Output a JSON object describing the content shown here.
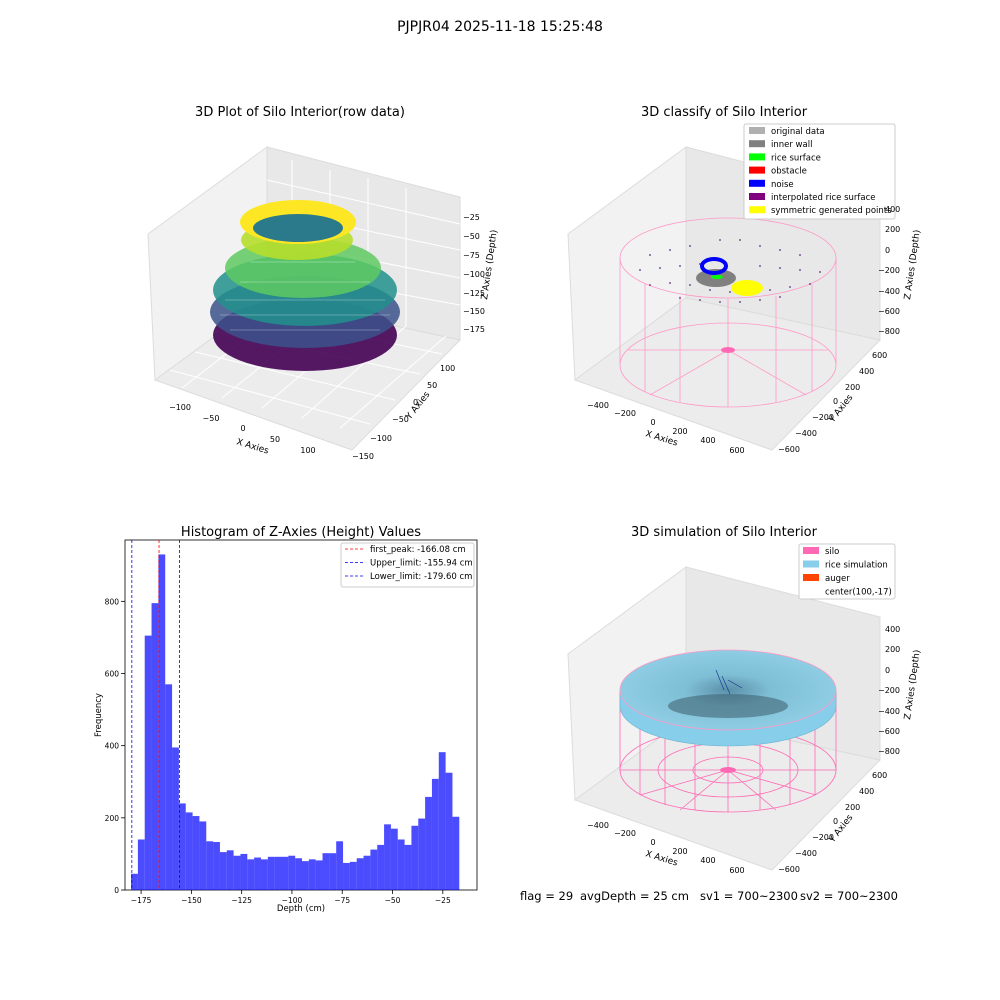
{
  "suptitle": "PJPJR04 2025-11-18 15:25:48",
  "panels": {
    "raw": {
      "title": "3D Plot of Silo Interior(row data)",
      "xlabel": "X Axies",
      "ylabel": "Y Axies",
      "zlabel": "Z Axies (Depth)",
      "xticks": [
        "−100",
        "−50",
        "0",
        "50",
        "100"
      ],
      "yticks": [
        "100",
        "50",
        "0",
        "−50",
        "−100",
        "−150"
      ],
      "zticks": [
        "−25",
        "−50",
        "−75",
        "−100",
        "−125",
        "−150",
        "−175"
      ]
    },
    "classify": {
      "title": "3D classify of Silo Interior",
      "xlabel": "X Axies",
      "ylabel": "Y Axies",
      "zlabel": "Z Axies (Depth)",
      "xticks": [
        "−400",
        "−200",
        "0",
        "200",
        "400",
        "600"
      ],
      "yticks": [
        "600",
        "400",
        "200",
        "0",
        "−200",
        "−400",
        "−600"
      ],
      "zticks": [
        "400",
        "200",
        "0",
        "−200",
        "−400",
        "−600",
        "−800"
      ],
      "legend": [
        {
          "label": "original data",
          "color": "#b0b0b0"
        },
        {
          "label": "inner wall",
          "color": "#808080"
        },
        {
          "label": "rice surface",
          "color": "#00ff00"
        },
        {
          "label": "obstacle",
          "color": "#ff0000"
        },
        {
          "label": "noise",
          "color": "#0000ff"
        },
        {
          "label": "interpolated rice surface",
          "color": "#800080"
        },
        {
          "label": "symmetric generated points",
          "color": "#ffff00"
        }
      ]
    },
    "simulation": {
      "title": "3D simulation of Silo Interior",
      "xlabel": "X Axies",
      "ylabel": "Y Axies",
      "zlabel": "Z Axies (Depth)",
      "xticks": [
        "−400",
        "−200",
        "0",
        "200",
        "400",
        "600"
      ],
      "yticks": [
        "600",
        "400",
        "200",
        "0",
        "−200",
        "−400",
        "−600"
      ],
      "zticks": [
        "400",
        "200",
        "0",
        "−200",
        "−400",
        "−600",
        "−800"
      ],
      "legend": [
        {
          "label": "silo",
          "color": "#ff69b4"
        },
        {
          "label": "rice simulation",
          "color": "#87ceeb"
        },
        {
          "label": "auger",
          "color": "#ff4500"
        },
        {
          "label": "center(100,-17)",
          "color": ""
        }
      ]
    }
  },
  "status": {
    "flag": "flag = 29",
    "avg_depth": "avgDepth = 25 cm",
    "sv1": "sv1 = 700~2300",
    "sv2": "sv2 = 700~2300"
  },
  "chart_data": {
    "type": "bar",
    "title": "Histogram of Z-Axies (Height) Values",
    "xlabel": "Depth (cm)",
    "ylabel": "Frequency",
    "xlim": [
      -183,
      -8
    ],
    "ylim": [
      0,
      970
    ],
    "xticks": [
      -175,
      -150,
      -125,
      -100,
      -75,
      -50,
      -25
    ],
    "yticks": [
      0,
      200,
      400,
      600,
      800
    ],
    "bar_color": "#0000ff",
    "bins": {
      "start": -180,
      "width": 3.4,
      "values": [
        45,
        140,
        705,
        795,
        930,
        570,
        395,
        240,
        215,
        205,
        190,
        135,
        133,
        105,
        110,
        95,
        100,
        85,
        90,
        85,
        92,
        92,
        92,
        95,
        88,
        80,
        85,
        82,
        102,
        102,
        135,
        75,
        78,
        88,
        95,
        112,
        125,
        182,
        170,
        140,
        125,
        178,
        198,
        258,
        308,
        382,
        325,
        203
      ]
    },
    "vlines": [
      {
        "x": -166.08,
        "label": "first_peak: -166.08 cm",
        "color": "#ff0000"
      },
      {
        "x": -155.94,
        "label": "Upper_limit: -155.94 cm",
        "color": "#0000ff"
      },
      {
        "x": -179.6,
        "label": "Lower_limit: -179.60 cm",
        "color": "#0000ff"
      }
    ],
    "legend_position": "top-right"
  }
}
